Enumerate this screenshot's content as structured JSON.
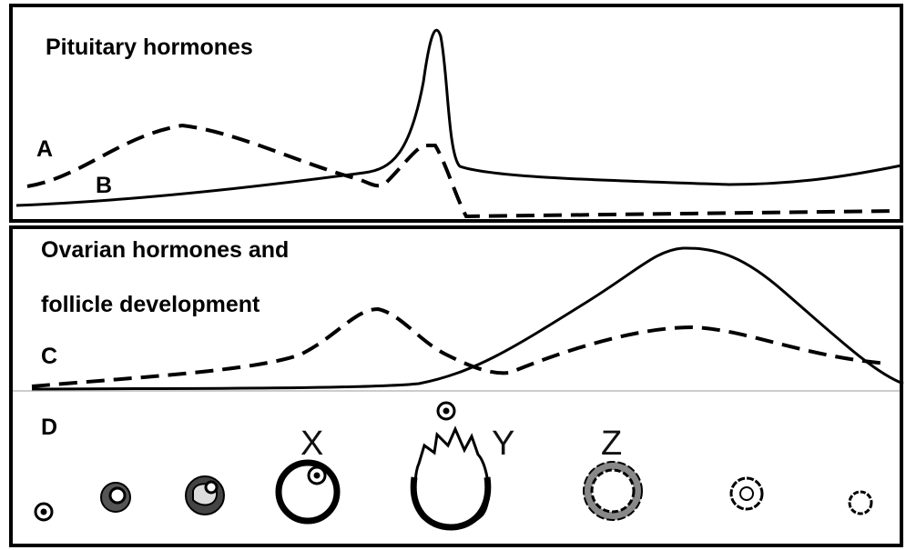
{
  "pituitary_panel": {
    "title": "Pituitary hormones",
    "curve_labels": [
      "A",
      "B"
    ]
  },
  "ovarian_panel": {
    "title_lines": [
      "Ovarian hormones and",
      "follicle development"
    ],
    "curve_labels": [
      "C"
    ]
  },
  "follicle_row": {
    "label": "D",
    "stage_labels": [
      "X",
      "Y",
      "Z"
    ]
  }
}
